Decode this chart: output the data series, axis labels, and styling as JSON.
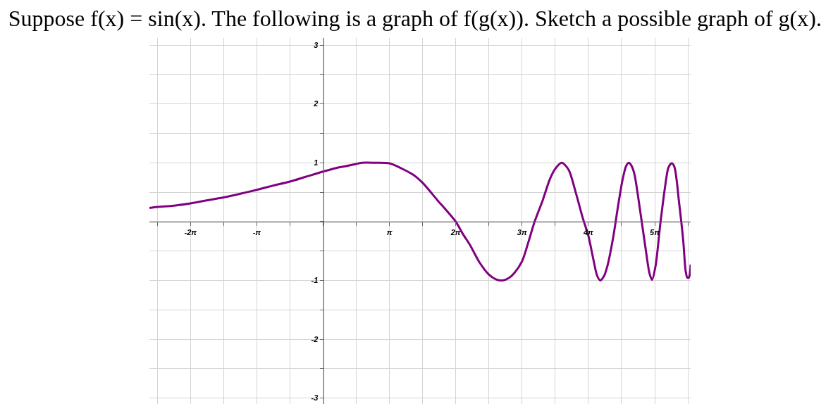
{
  "chart_data": {
    "type": "line",
    "title": "Suppose f(x) = sin(x). The following is a graph of f(g(x)). Sketch a possible graph of g(x).",
    "x": [
      -8.23,
      -7.85,
      -7.07,
      -6.28,
      -5.51,
      -4.71,
      -3.95,
      -3.14,
      -2.39,
      -1.57,
      -0.83,
      0,
      0.72,
      1.06,
      1.57,
      1.84,
      2.44,
      3.14,
      3.84,
      4.29,
      4.71,
      5.4,
      5.84,
      6.28,
      6.62,
      6.96,
      7.4,
      7.85,
      8.18,
      8.51,
      8.8,
      9.07,
      9.43,
      9.74,
      10.02,
      10.41,
      10.74,
      11.0,
      11.3,
      11.63,
      11.97,
      12.3,
      12.57,
      12.8,
      12.98,
      13.13,
      13.3,
      13.47,
      13.75,
      13.97,
      14.19,
      14.36,
      14.49,
      14.62,
      14.75,
      15.02,
      15.3,
      15.46,
      15.58,
      15.75,
      15.97,
      16.19,
      16.36,
      16.51,
      16.64,
      16.86,
      17.06,
      17.17,
      17.25,
      17.33,
      17.41
    ],
    "values": [
      0.23,
      0.25,
      0.27,
      0.31,
      0.36,
      0.41,
      0.47,
      0.54,
      0.61,
      0.68,
      0.76,
      0.85,
      0.92,
      0.94,
      0.98,
      1.0,
      1.0,
      0.99,
      0.88,
      0.79,
      0.66,
      0.37,
      0.19,
      0,
      -0.21,
      -0.4,
      -0.69,
      -0.9,
      -0.98,
      -1.0,
      -0.96,
      -0.87,
      -0.67,
      -0.33,
      0,
      0.37,
      0.72,
      0.9,
      1.0,
      0.88,
      0.49,
      0.06,
      -0.25,
      -0.64,
      -0.92,
      -1.0,
      -0.93,
      -0.75,
      -0.25,
      0.26,
      0.72,
      0.95,
      1.0,
      0.94,
      0.8,
      0.18,
      -0.52,
      -0.88,
      -0.99,
      -0.75,
      -0.05,
      0.57,
      0.92,
      0.99,
      0.93,
      0.33,
      -0.33,
      -0.83,
      -0.95,
      -0.95,
      -0.73
    ],
    "color": "#800080",
    "xlim": [
      -8.23,
      17.41
    ],
    "ylim": [
      -3.1,
      3.12
    ],
    "xticks": [
      {
        "value": -7.854,
        "label": null
      },
      {
        "value": -6.2832,
        "label": "-2π"
      },
      {
        "value": -4.7124,
        "label": null
      },
      {
        "value": -3.1416,
        "label": "-π"
      },
      {
        "value": -1.5708,
        "label": null
      },
      {
        "value": 0,
        "label": null
      },
      {
        "value": 1.5708,
        "label": null
      },
      {
        "value": 3.1416,
        "label": "π"
      },
      {
        "value": 4.7124,
        "label": null
      },
      {
        "value": 6.2832,
        "label": "2π"
      },
      {
        "value": 7.854,
        "label": null
      },
      {
        "value": 9.4248,
        "label": "3π"
      },
      {
        "value": 10.9956,
        "label": null
      },
      {
        "value": 12.5664,
        "label": "4π"
      },
      {
        "value": 14.1372,
        "label": null
      },
      {
        "value": 15.708,
        "label": "5π"
      },
      {
        "value": 17.2788,
        "label": null
      }
    ],
    "yticks": [
      -3,
      {
        "value": -2.5,
        "label": null
      },
      -2,
      {
        "value": -1.5,
        "label": null
      },
      -1,
      {
        "value": -0.5,
        "label": null
      },
      {
        "value": 0,
        "label": null
      },
      {
        "value": 0.5,
        "label": null
      },
      1,
      {
        "value": 1.5,
        "label": null
      },
      2,
      {
        "value": 2.5,
        "label": null
      },
      3
    ],
    "grid": true
  }
}
